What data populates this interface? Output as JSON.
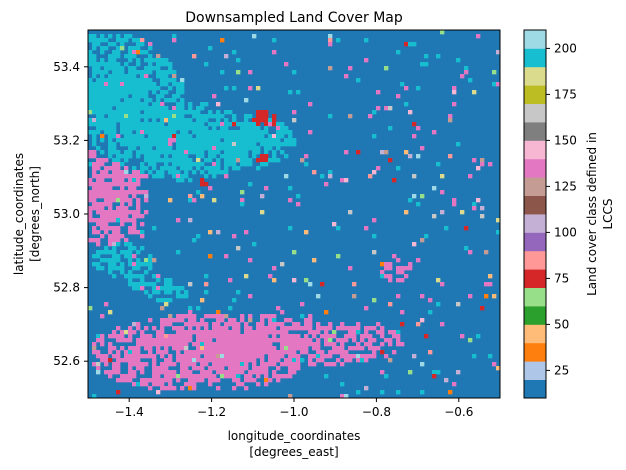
{
  "chart_data": {
    "type": "heatmap",
    "title": "Downsampled Land Cover Map",
    "xlabel": [
      "longitude_coordinates",
      "[degrees_east]"
    ],
    "ylabel": [
      "latitude_coordinates",
      "[degrees_north]"
    ],
    "xlim": [
      -1.5,
      -0.5
    ],
    "ylim": [
      52.5,
      53.5
    ],
    "xticks": [
      {
        "value": -1.4,
        "label": "−1.4"
      },
      {
        "value": -1.2,
        "label": "−1.2"
      },
      {
        "value": -1.0,
        "label": "−1.0"
      },
      {
        "value": -0.8,
        "label": "−0.8"
      },
      {
        "value": -0.6,
        "label": "−0.6"
      }
    ],
    "yticks": [
      {
        "value": 52.6,
        "label": "52.6"
      },
      {
        "value": 52.8,
        "label": "52.8"
      },
      {
        "value": 53.0,
        "label": "53.0"
      },
      {
        "value": 53.2,
        "label": "53.2"
      },
      {
        "value": 53.4,
        "label": "53.4"
      }
    ],
    "colorbar": {
      "label": [
        "Land cover class defined in",
        "LCCS"
      ],
      "range": [
        10,
        210
      ],
      "ticks": [
        25,
        50,
        75,
        100,
        125,
        150,
        175,
        200
      ],
      "colors": [
        "#1f77b4",
        "#aec7e8",
        "#ff7f0e",
        "#ffbb78",
        "#2ca02c",
        "#98df8a",
        "#d62728",
        "#ff9896",
        "#9467bd",
        "#c5b0d5",
        "#8c564b",
        "#c49c94",
        "#e377c2",
        "#f7b6d2",
        "#7f7f7f",
        "#c7c7c7",
        "#bcbd22",
        "#dbdb8d",
        "#17becf",
        "#9edae5"
      ]
    },
    "grid": false,
    "dominant_classes": [
      {
        "class": 10,
        "color": "#1f77b4",
        "description": "dominant background"
      },
      {
        "class": 190,
        "color": "#17becf",
        "region": "north-west and west-central"
      },
      {
        "class": 130,
        "color": "#e377c2",
        "region": "west and south"
      },
      {
        "class": 70,
        "color": "#d62728",
        "region": "small clusters near center-north"
      }
    ]
  }
}
